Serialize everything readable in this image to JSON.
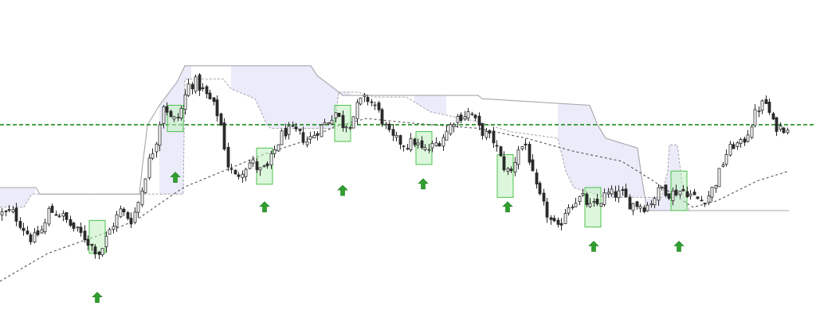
{
  "chart_data": {
    "type": "candlestick",
    "title": "",
    "xlabel": "",
    "ylabel": "",
    "ylim": [
      0,
      100
    ],
    "grid": false,
    "legend": "none",
    "colors": {
      "background": "#ffffff",
      "candle_up": "#ffffff",
      "candle_down": "#2a2a2a",
      "wick": "#2a2a2a",
      "reference_line": "#1e8c1e",
      "signal_box_fill": "#bff0bf",
      "signal_box_stroke": "#4fc04f",
      "arrow": "#2ea02e",
      "cloud_fill": "#e9e9f8",
      "cloud_edge": "#a6a6ad",
      "moving_average": "#555555"
    },
    "reference_line": {
      "value": 62.1,
      "style": "dashed"
    },
    "close_anchors": [
      [
        0,
        35
      ],
      [
        15,
        35.5
      ],
      [
        25,
        32
      ],
      [
        40,
        27
      ],
      [
        55,
        31
      ],
      [
        60,
        36
      ],
      [
        75,
        35
      ],
      [
        90,
        31
      ],
      [
        105,
        28
      ],
      [
        115,
        25
      ],
      [
        125,
        23
      ],
      [
        135,
        29
      ],
      [
        150,
        36
      ],
      [
        165,
        33
      ],
      [
        175,
        40
      ],
      [
        185,
        50
      ],
      [
        195,
        57
      ],
      [
        205,
        69
      ],
      [
        215,
        63
      ],
      [
        225,
        65
      ],
      [
        235,
        74
      ],
      [
        245,
        75
      ],
      [
        255,
        72
      ],
      [
        265,
        69
      ],
      [
        275,
        64
      ],
      [
        285,
        50
      ],
      [
        295,
        46
      ],
      [
        305,
        49
      ],
      [
        315,
        51
      ],
      [
        325,
        48
      ],
      [
        335,
        49
      ],
      [
        345,
        55
      ],
      [
        355,
        60
      ],
      [
        370,
        60
      ],
      [
        385,
        57
      ],
      [
        400,
        61
      ],
      [
        410,
        63
      ],
      [
        420,
        66
      ],
      [
        430,
        62
      ],
      [
        440,
        63
      ],
      [
        450,
        69
      ],
      [
        460,
        70
      ],
      [
        470,
        68
      ],
      [
        480,
        63
      ],
      [
        490,
        58
      ],
      [
        500,
        57
      ],
      [
        510,
        56
      ],
      [
        520,
        57
      ],
      [
        530,
        54
      ],
      [
        540,
        55
      ],
      [
        550,
        57
      ],
      [
        560,
        60
      ],
      [
        570,
        64
      ],
      [
        580,
        65
      ],
      [
        590,
        66
      ],
      [
        600,
        61
      ],
      [
        610,
        59
      ],
      [
        620,
        57
      ],
      [
        630,
        50
      ],
      [
        640,
        47
      ],
      [
        650,
        55
      ],
      [
        660,
        56
      ],
      [
        670,
        44
      ],
      [
        680,
        38
      ],
      [
        690,
        33
      ],
      [
        700,
        30
      ],
      [
        710,
        37
      ],
      [
        720,
        39
      ],
      [
        730,
        40
      ],
      [
        740,
        37
      ],
      [
        750,
        38
      ],
      [
        760,
        41
      ],
      [
        770,
        41
      ],
      [
        780,
        41
      ],
      [
        790,
        38
      ],
      [
        800,
        38
      ],
      [
        810,
        37
      ],
      [
        820,
        40
      ],
      [
        830,
        43
      ],
      [
        840,
        41
      ],
      [
        850,
        42
      ],
      [
        860,
        42
      ],
      [
        870,
        40
      ],
      [
        880,
        39
      ],
      [
        890,
        41
      ],
      [
        900,
        46
      ],
      [
        910,
        53
      ],
      [
        920,
        56
      ],
      [
        930,
        56
      ],
      [
        940,
        61
      ],
      [
        950,
        67
      ],
      [
        960,
        69
      ],
      [
        970,
        62
      ],
      [
        980,
        61
      ],
      [
        990,
        62
      ]
    ],
    "moving_average_anchors": [
      [
        0,
        14.5
      ],
      [
        60,
        23
      ],
      [
        130,
        29
      ],
      [
        170,
        33
      ],
      [
        230,
        43
      ],
      [
        280,
        48
      ],
      [
        330,
        53
      ],
      [
        380,
        57
      ],
      [
        420,
        61.5
      ],
      [
        460,
        64
      ],
      [
        520,
        62.5
      ],
      [
        600,
        61
      ],
      [
        660,
        58
      ],
      [
        720,
        54
      ],
      [
        780,
        51
      ],
      [
        820,
        45
      ],
      [
        850,
        40
      ],
      [
        870,
        37
      ],
      [
        900,
        39
      ],
      [
        950,
        45
      ],
      [
        990,
        48
      ]
    ],
    "cloud_upper": [
      [
        0,
        43
      ],
      [
        45,
        43
      ],
      [
        50,
        41
      ],
      [
        175,
        41
      ],
      [
        178,
        48
      ],
      [
        185,
        62
      ],
      [
        200,
        68
      ],
      [
        222,
        75
      ],
      [
        232,
        80
      ],
      [
        390,
        80
      ],
      [
        398,
        77
      ],
      [
        420,
        73
      ],
      [
        430,
        71
      ],
      [
        600,
        71
      ],
      [
        605,
        70
      ],
      [
        740,
        68
      ],
      [
        750,
        62
      ],
      [
        760,
        58
      ],
      [
        800,
        55
      ],
      [
        806,
        45
      ],
      [
        812,
        36
      ],
      [
        818,
        36
      ],
      [
        990,
        36
      ]
    ],
    "cloud_lower": [
      [
        0,
        37
      ],
      [
        30,
        37
      ],
      [
        40,
        41
      ],
      [
        175,
        41
      ],
      [
        230,
        41
      ],
      [
        232,
        76
      ],
      [
        280,
        76
      ],
      [
        290,
        73
      ],
      [
        320,
        70
      ],
      [
        335,
        62
      ],
      [
        340,
        61
      ],
      [
        420,
        61
      ],
      [
        425,
        72
      ],
      [
        450,
        72
      ],
      [
        470,
        70.5
      ],
      [
        510,
        70.5
      ],
      [
        540,
        66
      ],
      [
        600,
        63
      ],
      [
        640,
        60
      ],
      [
        700,
        58
      ],
      [
        710,
        48
      ],
      [
        720,
        43
      ],
      [
        760,
        40
      ],
      [
        810,
        40
      ],
      [
        830,
        40
      ],
      [
        838,
        48
      ],
      [
        840,
        56
      ],
      [
        850,
        56
      ],
      [
        858,
        40
      ],
      [
        865,
        36
      ],
      [
        870,
        36
      ],
      [
        990,
        36
      ]
    ],
    "cloud_fill_ranges": [
      [
        0,
        45
      ],
      [
        200,
        240
      ],
      [
        290,
        440
      ],
      [
        520,
        560
      ],
      [
        700,
        860
      ]
    ],
    "signals": [
      {
        "x": 122,
        "low": 23,
        "high": 33
      },
      {
        "x": 220,
        "low": 60,
        "high": 68
      },
      {
        "x": 332,
        "low": 44,
        "high": 55
      },
      {
        "x": 430,
        "low": 57,
        "high": 68
      },
      {
        "x": 532,
        "low": 50,
        "high": 60
      },
      {
        "x": 634,
        "low": 40,
        "high": 53
      },
      {
        "x": 744,
        "low": 31,
        "high": 43
      },
      {
        "x": 852,
        "low": 36,
        "high": 48
      }
    ],
    "arrows": [
      {
        "x": 122,
        "value": 9.5
      },
      {
        "x": 220,
        "value": 46
      },
      {
        "x": 332,
        "value": 37
      },
      {
        "x": 430,
        "value": 42
      },
      {
        "x": 531,
        "value": 44
      },
      {
        "x": 637,
        "value": 37
      },
      {
        "x": 745,
        "value": 25
      },
      {
        "x": 852,
        "value": 25
      }
    ]
  }
}
